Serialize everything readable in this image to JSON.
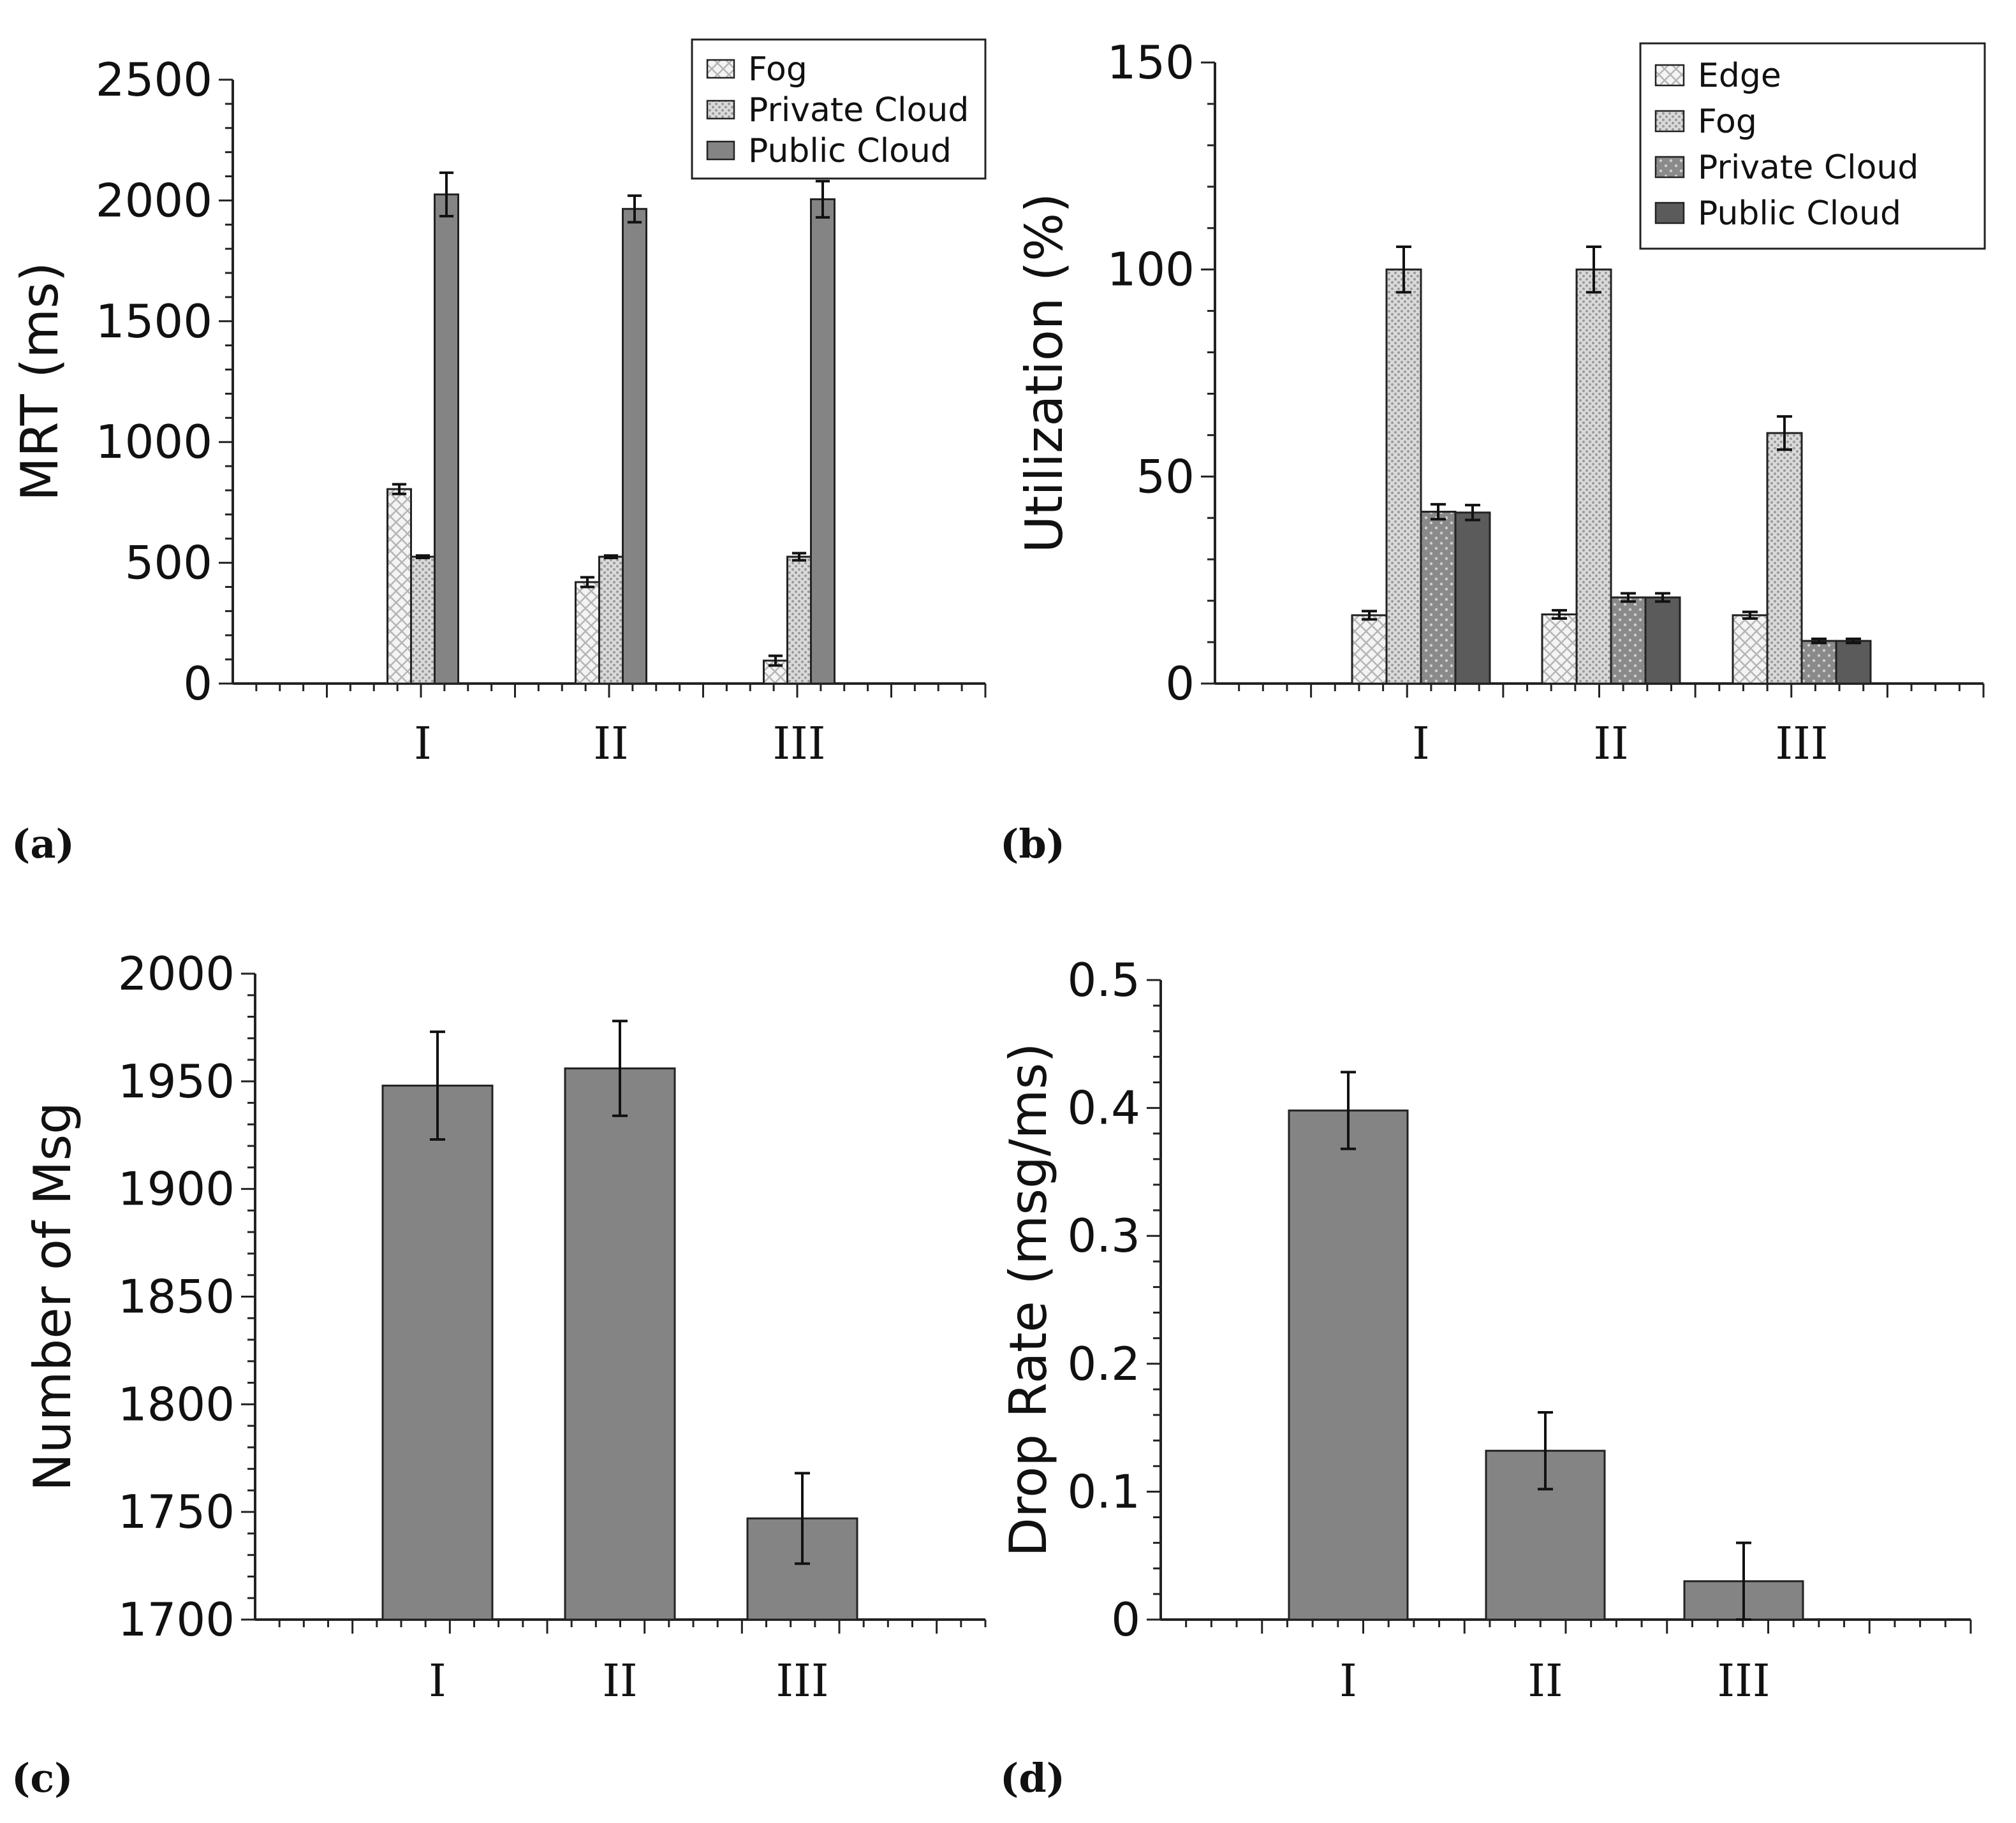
{
  "panels": [
    {
      "id": "a",
      "label": "(a)"
    },
    {
      "id": "b",
      "label": "(b)"
    },
    {
      "id": "c",
      "label": "(c)"
    },
    {
      "id": "d",
      "label": "(d)"
    }
  ],
  "chart_data": [
    {
      "id": "a",
      "type": "bar",
      "title": "",
      "xlabel": "",
      "ylabel": "MRT (ms)",
      "ylim": [
        0,
        2500
      ],
      "yticks": [
        0,
        500,
        1000,
        1500,
        2000,
        2500
      ],
      "ytick_labels": [
        "0",
        "500",
        "1000",
        "1500",
        "2000",
        "2500"
      ],
      "categories": [
        "I",
        "II",
        "III"
      ],
      "legend_position": "top-right",
      "series": [
        {
          "name": "Fog",
          "pattern": "crosshatch-light",
          "values": [
            805,
            420,
            95
          ],
          "errors": [
            20,
            20,
            20
          ]
        },
        {
          "name": "Private Cloud",
          "pattern": "dots-light",
          "values": [
            525,
            525,
            525
          ],
          "errors": [
            5,
            5,
            15
          ]
        },
        {
          "name": "Public Cloud",
          "pattern": "solid-gray",
          "values": [
            2025,
            1965,
            2005
          ],
          "errors": [
            90,
            55,
            75
          ]
        }
      ]
    },
    {
      "id": "b",
      "type": "bar",
      "title": "",
      "xlabel": "",
      "ylabel": "Utilization (%)",
      "ylim": [
        0,
        150
      ],
      "yticks": [
        0,
        50,
        100,
        150
      ],
      "ytick_labels": [
        "0",
        "50",
        "100",
        "150"
      ],
      "categories": [
        "I",
        "II",
        "III"
      ],
      "legend_position": "top-right",
      "series": [
        {
          "name": "Edge",
          "pattern": "crosshatch-light",
          "values": [
            16.5,
            16.7,
            16.5
          ],
          "errors": [
            1,
            1,
            0.8
          ]
        },
        {
          "name": "Fog",
          "pattern": "dots-light",
          "values": [
            100,
            100,
            60.5
          ],
          "errors": [
            5.5,
            5.5,
            4
          ]
        },
        {
          "name": "Private Cloud",
          "pattern": "dots-gray",
          "values": [
            41.5,
            20.8,
            10.3
          ],
          "errors": [
            1.8,
            1,
            0.5
          ]
        },
        {
          "name": "Public Cloud",
          "pattern": "solid-dark",
          "values": [
            41.3,
            20.8,
            10.3
          ],
          "errors": [
            1.8,
            1,
            0.5
          ]
        }
      ]
    },
    {
      "id": "c",
      "type": "bar",
      "title": "",
      "xlabel": "",
      "ylabel": "Number of Msg",
      "ylim": [
        1700,
        2000
      ],
      "yticks": [
        1700,
        1750,
        1800,
        1850,
        1900,
        1950,
        2000
      ],
      "ytick_labels": [
        "1700",
        "1750",
        "1800",
        "1850",
        "1900",
        "1950",
        "2000"
      ],
      "categories": [
        "I",
        "II",
        "III"
      ],
      "series": [
        {
          "name": "Number of Msg",
          "pattern": "solid-gray",
          "values": [
            1948,
            1956,
            1747
          ],
          "errors": [
            25,
            22,
            21
          ]
        }
      ]
    },
    {
      "id": "d",
      "type": "bar",
      "title": "",
      "xlabel": "",
      "ylabel": "Drop Rate (msg/ms)",
      "ylim": [
        0,
        0.5
      ],
      "yticks": [
        0,
        0.1,
        0.2,
        0.3,
        0.4,
        0.5
      ],
      "ytick_labels": [
        "0",
        "0.1",
        "0.2",
        "0.3",
        "0.4",
        "0.5"
      ],
      "categories": [
        "I",
        "II",
        "III"
      ],
      "series": [
        {
          "name": "Drop Rate",
          "pattern": "solid-gray",
          "values": [
            0.398,
            0.132,
            0.03
          ],
          "errors": [
            0.03,
            0.03,
            0.03
          ]
        }
      ]
    }
  ]
}
